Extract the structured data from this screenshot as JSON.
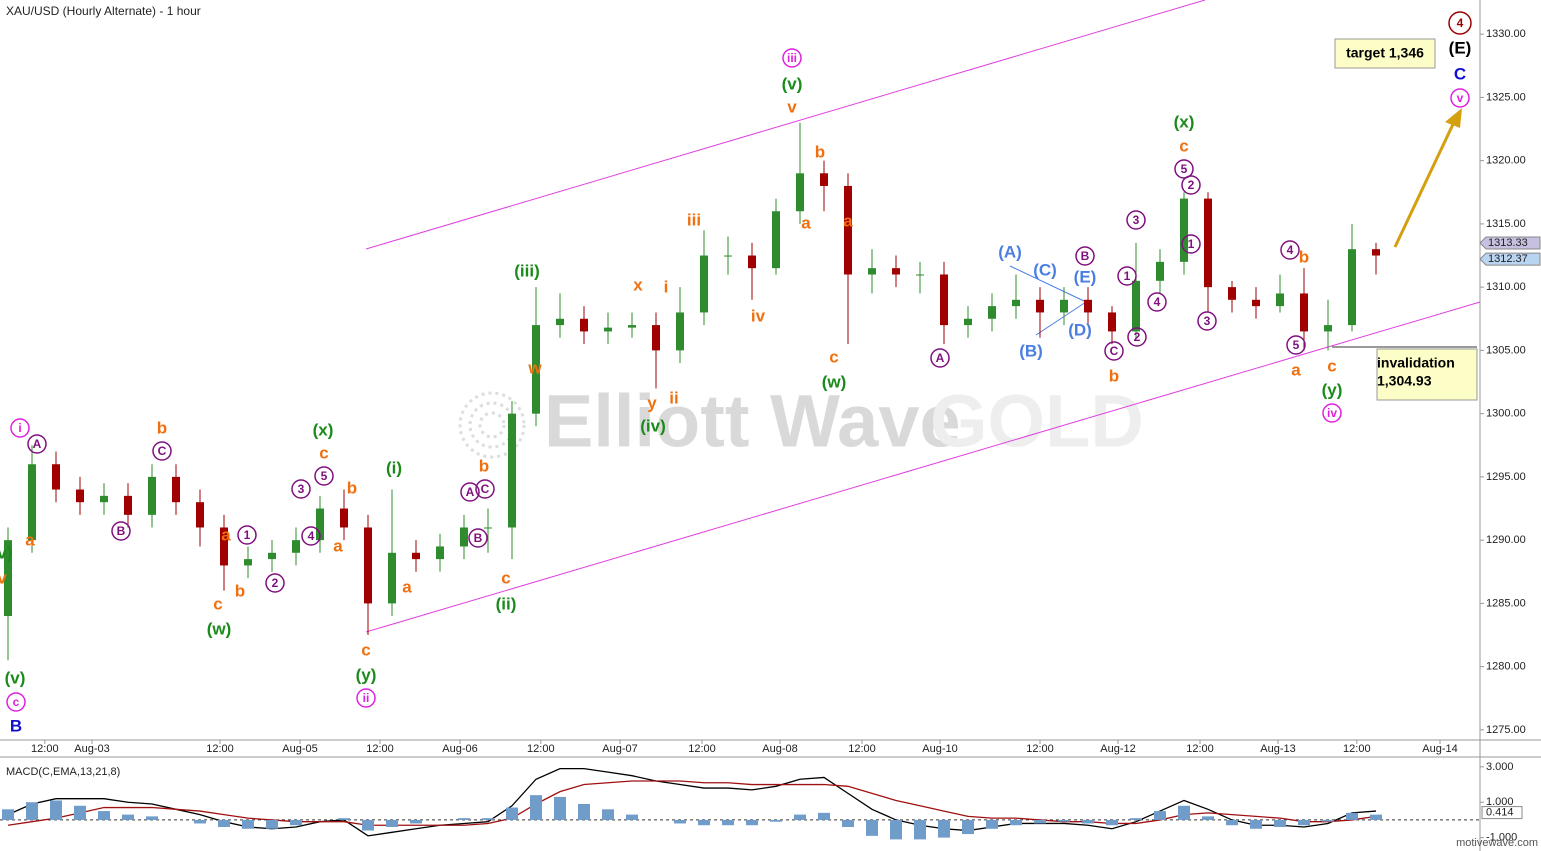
{
  "chart_data": {
    "type": "candlestick",
    "title": "XAU/USD (Hourly Alternate) - 1 hour",
    "x": [
      1,
      4,
      7,
      10,
      13,
      16,
      19,
      22,
      25,
      28,
      31,
      34,
      37,
      40,
      43,
      46,
      49,
      52,
      55,
      58,
      61,
      64,
      67,
      70,
      73,
      76,
      79,
      82,
      85,
      88,
      91,
      94,
      97,
      100,
      103,
      106,
      109,
      112,
      115,
      118,
      121,
      124,
      127,
      130,
      133,
      136,
      139,
      142,
      145,
      148,
      151,
      154,
      157,
      160,
      163,
      166,
      169,
      172
    ],
    "open": [
      1284,
      1290,
      1296,
      1294,
      1293,
      1293.5,
      1292,
      1295,
      1293,
      1291,
      1288,
      1288.5,
      1289,
      1290,
      1292.5,
      1291,
      1285,
      1289,
      1288.5,
      1289.5,
      1291,
      1291,
      1300,
      1307,
      1307.5,
      1306.5,
      1306.8,
      1307,
      1305,
      1308,
      1312.5,
      1312.5,
      1311.5,
      1316,
      1319,
      1318,
      1311,
      1311.5,
      1311,
      1311,
      1307,
      1307.5,
      1308.5,
      1309,
      1308,
      1309,
      1308,
      1306.5,
      1310.5,
      1312,
      1317,
      1310,
      1309,
      1308.5,
      1309.5,
      1306.5,
      1307,
      1313
    ],
    "high": [
      1291,
      1297.5,
      1297,
      1295,
      1294.5,
      1294.5,
      1296,
      1296,
      1294,
      1292,
      1289.5,
      1290,
      1291,
      1293.5,
      1294,
      1292,
      1294,
      1290,
      1290.5,
      1292,
      1292.5,
      1301,
      1310,
      1309.5,
      1308.5,
      1308,
      1308,
      1308,
      1310,
      1314.5,
      1314,
      1313.5,
      1317,
      1323,
      1320,
      1319,
      1313,
      1312.5,
      1312,
      1312,
      1308.5,
      1309.5,
      1311,
      1310,
      1310,
      1310,
      1308.5,
      1313.5,
      1313,
      1317.5,
      1317.5,
      1310.5,
      1310,
      1311,
      1311.5,
      1309,
      1315,
      1313.5
    ],
    "low": [
      1280.5,
      1289,
      1293,
      1292,
      1292,
      1291,
      1291,
      1292,
      1289.5,
      1286,
      1287,
      1287.5,
      1288,
      1289,
      1290,
      1282.5,
      1284,
      1287.5,
      1287.5,
      1288.5,
      1289,
      1288.5,
      1299,
      1306,
      1305.5,
      1305.5,
      1306,
      1302,
      1304,
      1307,
      1311,
      1309,
      1311,
      1315,
      1316,
      1305.5,
      1309.5,
      1310,
      1309.5,
      1305.5,
      1306,
      1306.5,
      1307.5,
      1306,
      1307,
      1307,
      1305.5,
      1306,
      1309.5,
      1311,
      1308,
      1308,
      1307.5,
      1308,
      1305,
      1305,
      1306.5,
      1311
    ],
    "close": [
      1290,
      1296,
      1294,
      1293,
      1293.5,
      1292,
      1295,
      1293,
      1291,
      1288,
      1288.5,
      1289,
      1290,
      1292.5,
      1291,
      1285,
      1289,
      1288.5,
      1289.5,
      1291,
      1291,
      1300,
      1307,
      1307.5,
      1306.5,
      1306.8,
      1307,
      1305,
      1308,
      1312.5,
      1312.5,
      1311.5,
      1316,
      1319,
      1318,
      1311,
      1311.5,
      1311,
      1311,
      1307,
      1307.5,
      1308.5,
      1309,
      1308,
      1309,
      1308,
      1306.5,
      1310.5,
      1312,
      1317,
      1310,
      1309,
      1308.5,
      1309.5,
      1306.5,
      1307,
      1313,
      1312.5
    ],
    "up_color": "#2e8b2e",
    "down_color": "#a00000",
    "xlim": [
      0,
      185
    ],
    "xticks": [
      {
        "value": 5.6,
        "label": "12:00"
      },
      {
        "value": 11.5,
        "label": "Aug-03"
      },
      {
        "value": 27.5,
        "label": "12:00"
      },
      {
        "value": 37.5,
        "label": "Aug-05"
      },
      {
        "value": 47.5,
        "label": "12:00"
      },
      {
        "value": 57.5,
        "label": "Aug-06"
      },
      {
        "value": 67.6,
        "label": "12:00"
      },
      {
        "value": 77.5,
        "label": "Aug-07"
      },
      {
        "value": 87.75,
        "label": "12:00"
      },
      {
        "value": 97.5,
        "label": "Aug-08"
      },
      {
        "value": 107.75,
        "label": "12:00"
      },
      {
        "value": 117.5,
        "label": "Aug-10"
      },
      {
        "value": 130,
        "label": "12:00"
      },
      {
        "value": 139.75,
        "label": "Aug-12"
      },
      {
        "value": 150,
        "label": "12:00"
      },
      {
        "value": 159.75,
        "label": "Aug-13"
      },
      {
        "value": 169.6,
        "label": "12:00"
      },
      {
        "value": 180,
        "label": "Aug-14"
      }
    ],
    "ylim": [
      1274.2,
      1332.7
    ],
    "yticks": [
      {
        "value": 1275,
        "label": "1275.00"
      },
      {
        "value": 1280,
        "label": "1280.00"
      },
      {
        "value": 1285,
        "label": "1285.00"
      },
      {
        "value": 1290,
        "label": "1290.00"
      },
      {
        "value": 1295,
        "label": "1295.00"
      },
      {
        "value": 1300,
        "label": "1300.00"
      },
      {
        "value": 1305,
        "label": "1305.00"
      },
      {
        "value": 1310,
        "label": "1310.00"
      },
      {
        "value": 1315,
        "label": "1315.00"
      },
      {
        "value": 1320,
        "label": "1320.00"
      },
      {
        "value": 1325,
        "label": "1325.00"
      },
      {
        "value": 1330,
        "label": "1330.00"
      }
    ],
    "price_tags": [
      1313.33,
      1312.37
    ],
    "target_text": "target 1,346",
    "invalidation_title": "invalidation",
    "invalidation_value": "1,304.93",
    "watermark": [
      "Elliott Wave",
      "GOLD"
    ],
    "source": "motivewave.com",
    "annotations": [
      "i",
      "A",
      "(v)",
      "v",
      "a",
      "(v)",
      "c",
      "B",
      "B",
      "b",
      "C",
      "a",
      "1",
      "c",
      "b",
      "(w)",
      "2",
      "(x)",
      "c",
      "5",
      "3",
      "b",
      "4",
      "a",
      "(i)",
      "a",
      "c",
      "(y)",
      "ii",
      "b",
      "A",
      "C",
      "B",
      "c",
      "(ii)",
      "(iii)",
      "w",
      "x",
      "i",
      "y",
      "ii",
      "(iv)",
      "iii",
      "iv",
      "iii",
      "(v)",
      "v",
      "b",
      "a",
      "a",
      "c",
      "(w)",
      "A",
      "(A)",
      "(C)",
      "B",
      "(E)",
      "(D)",
      "(B)",
      "C",
      "b",
      "3",
      "1",
      "4",
      "2",
      "(x)",
      "c",
      "5",
      "2",
      "1",
      "3",
      "4",
      "b",
      "5",
      "a",
      "c",
      "(y)",
      "iv",
      "4",
      "(E)",
      "C",
      "v"
    ],
    "macd": {
      "title": "MACD(C,EMA,13,21,8)",
      "ylim": [
        -1.7,
        3.5
      ],
      "yticks": [
        {
          "value": 3,
          "label": "3.000"
        },
        {
          "value": 1,
          "label": "1.000"
        },
        {
          "value": -1,
          "label": "-1.000"
        }
      ],
      "last_value": {
        "value": 0.414,
        "label": "0.414"
      },
      "series": [
        {
          "name": "MACD",
          "color": "#000000",
          "values": [
            0.3,
            0.9,
            1.2,
            1.2,
            1.2,
            1.0,
            0.9,
            0.6,
            0.3,
            -0.1,
            -0.4,
            -0.5,
            -0.4,
            -0.1,
            0.0,
            -0.9,
            -0.7,
            -0.5,
            -0.3,
            -0.2,
            -0.1,
            0.8,
            2.3,
            2.9,
            2.9,
            2.7,
            2.5,
            2.2,
            2.0,
            1.8,
            1.8,
            1.7,
            1.9,
            2.3,
            2.4,
            1.5,
            0.6,
            0.0,
            -0.3,
            -0.5,
            -0.6,
            -0.4,
            -0.2,
            -0.2,
            -0.2,
            -0.3,
            -0.5,
            -0.1,
            0.5,
            1.1,
            0.6,
            0.0,
            -0.3,
            -0.3,
            -0.4,
            -0.2,
            0.4,
            0.5
          ]
        },
        {
          "name": "Signal",
          "color": "#a01010",
          "values": [
            -0.3,
            -0.1,
            0.1,
            0.4,
            0.7,
            0.7,
            0.7,
            0.6,
            0.5,
            0.3,
            0.1,
            0.0,
            -0.1,
            -0.1,
            -0.1,
            -0.3,
            -0.3,
            -0.3,
            -0.3,
            -0.3,
            -0.2,
            0.1,
            0.9,
            1.6,
            2.0,
            2.1,
            2.2,
            2.2,
            2.2,
            2.1,
            2.1,
            2.0,
            2.0,
            2.0,
            2.0,
            1.9,
            1.5,
            1.1,
            0.8,
            0.5,
            0.2,
            0.1,
            0.1,
            0.0,
            -0.1,
            -0.1,
            -0.2,
            -0.2,
            0.0,
            0.3,
            0.4,
            0.3,
            0.2,
            0.1,
            -0.1,
            -0.1,
            0.0,
            0.2
          ]
        },
        {
          "name": "Histogram",
          "color": "#6f9cc8",
          "values": [
            0.6,
            1.0,
            1.1,
            0.8,
            0.5,
            0.3,
            0.2,
            0.0,
            -0.2,
            -0.4,
            -0.5,
            -0.5,
            -0.3,
            0.0,
            0.1,
            -0.6,
            -0.4,
            -0.2,
            0.0,
            0.1,
            0.1,
            0.7,
            1.4,
            1.3,
            0.9,
            0.6,
            0.3,
            0.0,
            -0.2,
            -0.3,
            -0.3,
            -0.3,
            -0.1,
            0.3,
            0.4,
            -0.4,
            -0.9,
            -1.1,
            -1.1,
            -1.0,
            -0.8,
            -0.5,
            -0.3,
            -0.2,
            -0.1,
            -0.2,
            -0.3,
            0.1,
            0.5,
            0.8,
            0.2,
            -0.3,
            -0.5,
            -0.4,
            -0.3,
            -0.1,
            0.4,
            0.3
          ]
        }
      ]
    }
  }
}
